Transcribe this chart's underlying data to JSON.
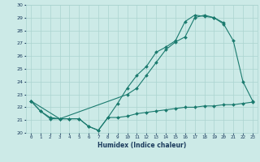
{
  "xlabel": "Humidex (Indice chaleur)",
  "background_color": "#cceae7",
  "line_color": "#1a7a6e",
  "grid_color": "#aad4d0",
  "x_values": [
    0,
    1,
    2,
    3,
    4,
    5,
    6,
    7,
    8,
    9,
    10,
    11,
    12,
    13,
    14,
    15,
    16,
    17,
    18,
    19,
    20,
    21,
    22,
    23
  ],
  "y_line1": [
    22.5,
    21.7,
    21.2,
    21.1,
    21.1,
    21.1,
    20.5,
    20.2,
    21.2,
    22.3,
    23.5,
    24.5,
    25.2,
    26.3,
    26.7,
    27.2,
    28.7,
    29.2,
    29.1,
    29.0,
    28.5,
    27.2,
    24.0,
    22.5
  ],
  "y_line2": [
    22.5,
    21.7,
    21.1,
    21.1,
    21.1,
    21.1,
    20.5,
    20.2,
    21.2,
    21.2,
    21.3,
    21.5,
    21.6,
    21.7,
    21.8,
    21.9,
    22.0,
    22.0,
    22.1,
    22.1,
    22.2,
    22.2,
    22.3,
    22.4
  ],
  "x_line3": [
    0,
    3,
    10,
    11,
    12,
    13,
    14,
    15,
    16,
    17,
    18,
    19,
    20
  ],
  "y_line3": [
    22.5,
    21.1,
    23.0,
    23.5,
    24.5,
    25.5,
    26.5,
    27.1,
    27.5,
    29.0,
    29.2,
    29.0,
    28.6
  ],
  "ylim": [
    20,
    30
  ],
  "yticks": [
    20,
    21,
    22,
    23,
    24,
    25,
    26,
    27,
    28,
    29,
    30
  ],
  "xticks": [
    0,
    1,
    2,
    3,
    4,
    5,
    6,
    7,
    8,
    9,
    10,
    11,
    12,
    13,
    14,
    15,
    16,
    17,
    18,
    19,
    20,
    21,
    22,
    23
  ]
}
